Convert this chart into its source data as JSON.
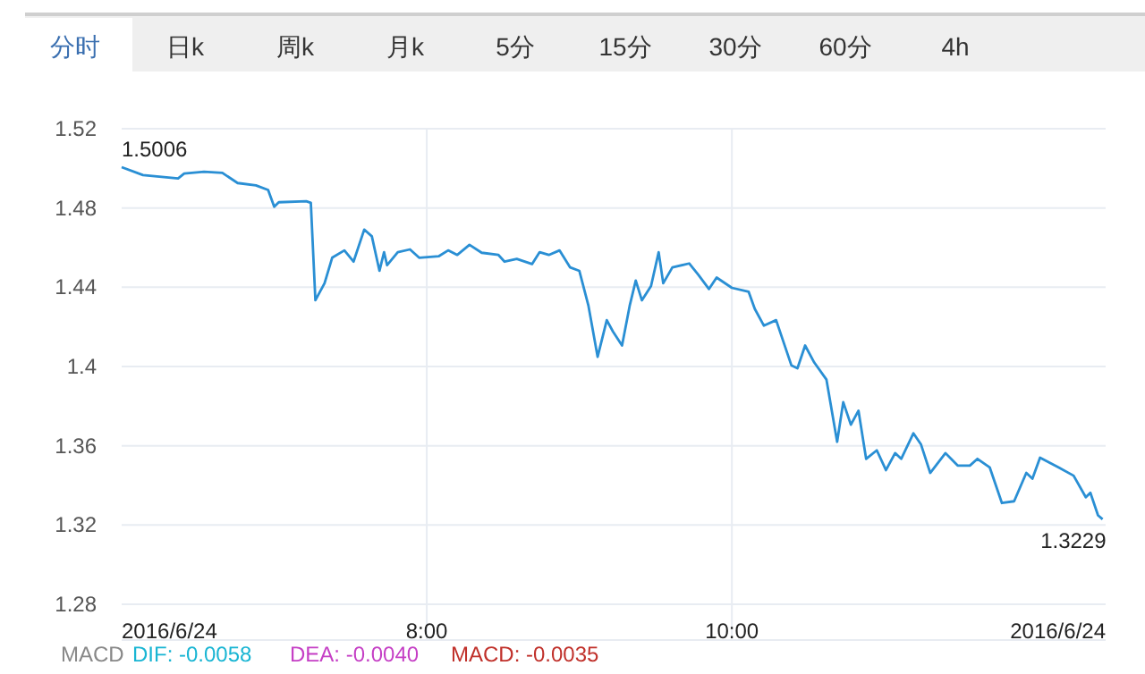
{
  "chart_data": {
    "type": "line",
    "annotations": [
      "分时",
      "日k",
      "周k",
      "月k",
      "5分",
      "15分",
      "30分",
      "60分",
      "4h",
      "MACD",
      "DIF: -0.0058",
      "DEA: -0.0040",
      "MACD: -0.0035",
      {
        "text": "1.5006",
        "x": 6.0,
        "y": 1.5006
      },
      {
        "text": "1.3229",
        "x": 12.43,
        "y": 1.3229
      }
    ],
    "xlim": [
      6,
      12.45
    ],
    "xticks": [
      {
        "value": 6,
        "label": "2016/6/24"
      },
      {
        "value": 8,
        "label": "8:00"
      },
      {
        "value": 10,
        "label": "10:00"
      },
      {
        "value": 12.45,
        "label": "2016/6/24"
      }
    ],
    "ylim": [
      1.28,
      1.52
    ],
    "yticks": [
      1.28,
      1.32,
      1.36,
      1.4,
      1.44,
      1.48,
      1.52
    ],
    "grid": true,
    "series": [
      {
        "color": "#2a8fd4",
        "x": [
          6.0,
          6.14,
          6.37,
          6.41,
          6.54,
          6.66,
          6.76,
          6.88,
          6.96,
          7.0,
          7.03,
          7.21,
          7.24,
          7.27,
          7.33,
          7.38,
          7.46,
          7.52,
          7.59,
          7.64,
          7.69,
          7.72,
          7.74,
          7.81,
          7.89,
          7.95,
          8.08,
          8.14,
          8.2,
          8.28,
          8.36,
          8.47,
          8.51,
          8.59,
          8.69,
          8.74,
          8.8,
          8.87,
          8.94,
          9.0,
          9.06,
          9.12,
          9.18,
          9.22,
          9.28,
          9.33,
          9.37,
          9.41,
          9.47,
          9.52,
          9.55,
          9.61,
          9.72,
          9.78,
          9.85,
          9.9,
          10.0,
          10.11,
          10.15,
          10.21,
          10.29,
          10.39,
          10.43,
          10.48,
          10.54,
          10.62,
          10.69,
          10.73,
          10.78,
          10.83,
          10.88,
          10.95,
          11.01,
          11.07,
          11.11,
          11.19,
          11.24,
          11.3,
          11.4,
          11.48,
          11.56,
          11.61,
          11.69,
          11.77,
          11.85,
          11.93,
          11.97,
          12.02,
          12.14,
          12.24,
          12.32,
          12.35,
          12.4,
          12.43
        ],
        "values": [
          1.5006,
          1.4966,
          1.4949,
          1.4974,
          1.4983,
          1.4977,
          1.4926,
          1.4914,
          1.4891,
          1.4806,
          1.4829,
          1.4834,
          1.4826,
          1.4334,
          1.442,
          1.4549,
          1.4586,
          1.4529,
          1.4691,
          1.4657,
          1.4483,
          1.4577,
          1.4511,
          1.4577,
          1.4591,
          1.4549,
          1.4557,
          1.4586,
          1.4563,
          1.4614,
          1.4574,
          1.4563,
          1.4529,
          1.4543,
          1.4517,
          1.4577,
          1.4563,
          1.4586,
          1.45,
          1.4483,
          1.4306,
          1.4049,
          1.4234,
          1.4177,
          1.4106,
          1.4306,
          1.4434,
          1.4334,
          1.4406,
          1.4577,
          1.442,
          1.45,
          1.452,
          1.4463,
          1.4391,
          1.4449,
          1.4397,
          1.4377,
          1.4291,
          1.4206,
          1.4234,
          1.4006,
          1.3991,
          1.4106,
          1.402,
          1.3934,
          1.362,
          1.382,
          1.3706,
          1.3777,
          1.3534,
          1.3577,
          1.3477,
          1.3563,
          1.3534,
          1.3663,
          1.3606,
          1.3463,
          1.3563,
          1.35,
          1.35,
          1.3534,
          1.3491,
          1.3311,
          1.332,
          1.3463,
          1.3434,
          1.354,
          1.3491,
          1.3449,
          1.334,
          1.3363,
          1.3249,
          1.3229
        ]
      }
    ]
  }
}
